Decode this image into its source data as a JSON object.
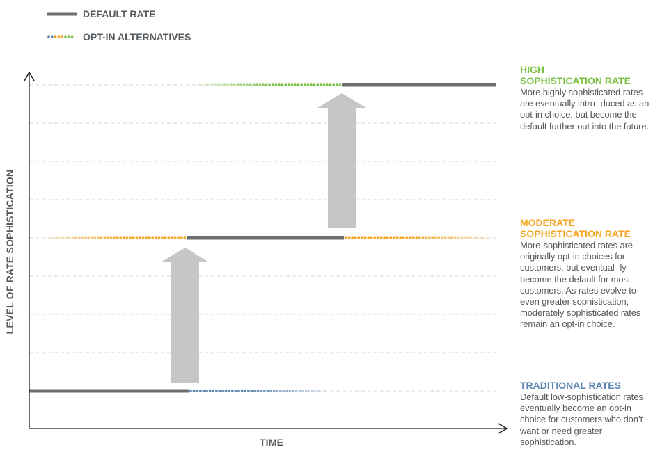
{
  "legend": {
    "default_label": "DEFAULT RATE",
    "optin_label": "OPT-IN ALTERNATIVES"
  },
  "axes": {
    "y_label": "LEVEL OF RATE SOPHISTICATION",
    "x_label": "TIME"
  },
  "tiers": [
    {
      "title_line1": "HIGH",
      "title_line2": "SOPHISTICATION RATE",
      "description": "More highly sophisticated rates are eventually intro- duced as an opt-in choice, but become the default further out into the future.",
      "color": "#7ac143"
    },
    {
      "title_line1": "MODERATE",
      "title_line2": "SOPHISTICATION RATE",
      "description": "More-sophisticated rates are originally opt-in choices for customers, but eventual- ly become the default for most customers. As rates evolve to even greater sophistication, moderately sophisticated rates remain an opt-in choice.",
      "color": "#f5a623"
    },
    {
      "title_line1": "TRADITIONAL RATES",
      "title_line2": "",
      "description": "Default low-sophistication rates eventually become an opt-in choice for customers who don’t want or need greater sophistication.",
      "color": "#5b84b1"
    }
  ],
  "colors": {
    "default_line": "#6d6e71",
    "arrow": "#c6c6c6",
    "grid": "#d7d7d7",
    "axis": "#1a1a1a"
  }
}
